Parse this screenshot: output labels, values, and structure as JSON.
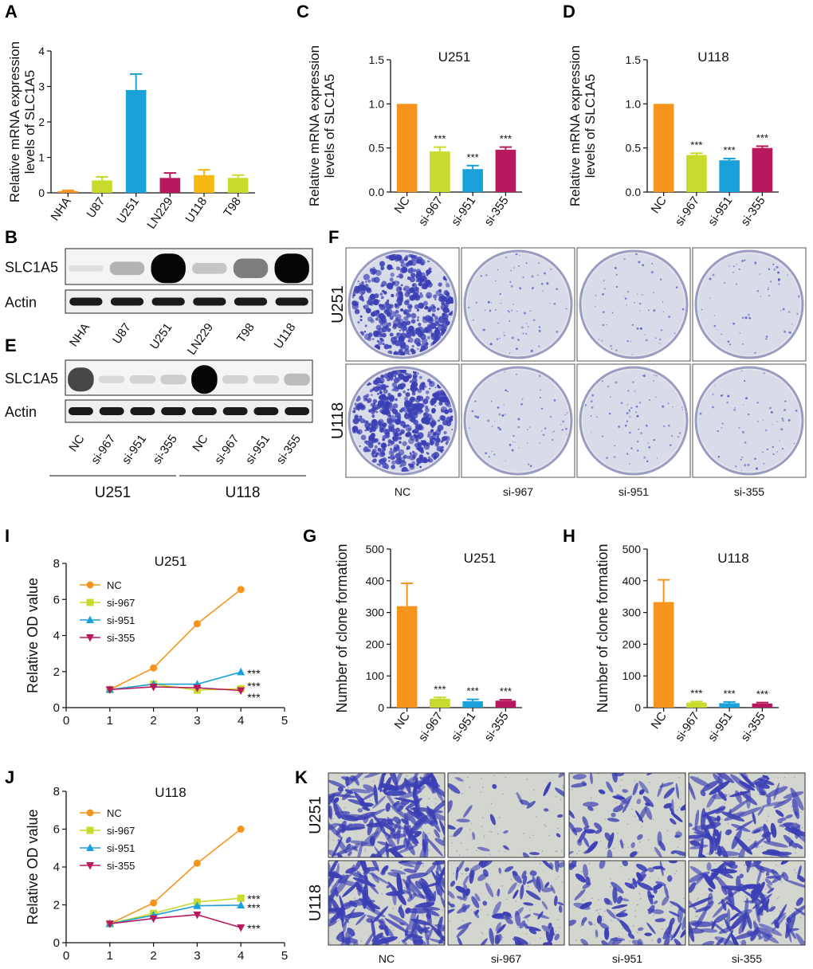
{
  "colors": {
    "NHA": "#f7941d",
    "U87": "#c8da2b",
    "U251": "#1ba1d9",
    "LN229": "#b8195e",
    "U118": "#f8b814",
    "T98": "#c8da2b",
    "NC": "#f7941d",
    "si967": "#c8da2b",
    "si951": "#1ba1d9",
    "si355": "#b8195e",
    "cv_purple": "#3b3fb4",
    "cv_pale": "#d8dbe8",
    "tw_bg": "#d3d5cf"
  },
  "panels": {
    "A": "A",
    "B": "B",
    "C": "C",
    "D": "D",
    "E": "E",
    "F": "F",
    "G": "G",
    "H": "H",
    "I": "I",
    "J": "J",
    "K": "K"
  },
  "blots": {
    "B": {
      "rows": [
        "SLC1A5",
        "Actin"
      ],
      "lanes": [
        "NHA",
        "U87",
        "U251",
        "LN229",
        "T98",
        "U118"
      ],
      "slc_intensity": [
        0.05,
        0.35,
        1.0,
        0.25,
        0.6,
        1.0
      ]
    },
    "E": {
      "rows": [
        "SLC1A5",
        "Actin"
      ],
      "lanes": [
        "NC",
        "si-967",
        "si-951",
        "si-355",
        "NC",
        "si-967",
        "si-951",
        "si-355"
      ],
      "groups": [
        "U251",
        "U118"
      ],
      "slc_intensity": [
        0.8,
        0.1,
        0.15,
        0.2,
        1.0,
        0.15,
        0.15,
        0.3
      ]
    }
  },
  "plates": {
    "F": {
      "rows": [
        "U251",
        "U118"
      ],
      "cols": [
        "NC",
        "si-967",
        "si-951",
        "si-355"
      ],
      "density": [
        [
          0.8,
          0.08,
          0.05,
          0.05
        ],
        [
          1.0,
          0.06,
          0.07,
          0.05
        ]
      ]
    },
    "K": {
      "rows": [
        "U251",
        "U118"
      ],
      "cols": [
        "NC",
        "si-967",
        "si-951",
        "si-355"
      ],
      "density": [
        [
          0.9,
          0.05,
          0.3,
          0.55
        ],
        [
          0.85,
          0.45,
          0.4,
          0.6
        ]
      ]
    }
  },
  "chart_data": [
    {
      "panel": "A",
      "type": "bar",
      "title": "",
      "ylabel": "Relative mRNA expression levels of SLC1A5",
      "ylim": [
        0,
        4
      ],
      "yticks": [
        "0",
        "1",
        "2",
        "3",
        "4"
      ],
      "categories": [
        "NHA",
        "U87",
        "U251",
        "LN229",
        "U118",
        "T98"
      ],
      "values": [
        0.05,
        0.35,
        2.9,
        0.42,
        0.5,
        0.42
      ],
      "errors": [
        0.02,
        0.1,
        0.45,
        0.14,
        0.15,
        0.08
      ],
      "annotations": [
        "",
        "",
        "",
        "",
        "",
        ""
      ]
    },
    {
      "panel": "C",
      "type": "bar",
      "title": "U251",
      "ylabel": "Relative mRNA expression levels of SLC1A5",
      "ylim": [
        0,
        1.5
      ],
      "yticks": [
        "0.0",
        "0.5",
        "1.0",
        "1.5"
      ],
      "categories": [
        "NC",
        "si-967",
        "si-951",
        "si-355"
      ],
      "values": [
        1.0,
        0.46,
        0.26,
        0.48
      ],
      "errors": [
        0,
        0.05,
        0.04,
        0.03
      ],
      "annotations": [
        "",
        "***",
        "***",
        "***"
      ]
    },
    {
      "panel": "D",
      "type": "bar",
      "title": "U118",
      "ylabel": "Relative mRNA expression levels of SLC1A5",
      "ylim": [
        0,
        1.5
      ],
      "yticks": [
        "0.0",
        "0.5",
        "1.0",
        "1.5"
      ],
      "categories": [
        "NC",
        "si-967",
        "si-951",
        "si-355"
      ],
      "values": [
        1.0,
        0.42,
        0.36,
        0.5
      ],
      "errors": [
        0,
        0.02,
        0.02,
        0.02
      ],
      "annotations": [
        "",
        "***",
        "***",
        "***"
      ]
    },
    {
      "panel": "G",
      "type": "bar",
      "title": "U251",
      "ylabel": "Number of clone formation",
      "ylim": [
        0,
        500
      ],
      "yticks": [
        "0",
        "100",
        "200",
        "300",
        "400",
        "500"
      ],
      "categories": [
        "NC",
        "si-967",
        "si-951",
        "si-355"
      ],
      "values": [
        320,
        28,
        20,
        22
      ],
      "errors": [
        72,
        4,
        6,
        3
      ],
      "annotations": [
        "",
        "***",
        "***",
        "***"
      ]
    },
    {
      "panel": "H",
      "type": "bar",
      "title": "U118",
      "ylabel": "Number of clone formation",
      "ylim": [
        0,
        500
      ],
      "yticks": [
        "0",
        "100",
        "200",
        "300",
        "400",
        "500"
      ],
      "categories": [
        "NC",
        "si-967",
        "si-951",
        "si-355"
      ],
      "values": [
        333,
        16,
        14,
        13
      ],
      "errors": [
        70,
        3,
        4,
        3
      ],
      "annotations": [
        "",
        "***",
        "***",
        "***"
      ]
    },
    {
      "panel": "I",
      "type": "line",
      "title": "U251",
      "ylabel": "Relative OD value",
      "xlim": [
        0,
        5
      ],
      "ylim": [
        0,
        8
      ],
      "xticks": [
        "0",
        "1",
        "2",
        "3",
        "4",
        "5"
      ],
      "yticks": [
        "0",
        "2",
        "4",
        "6",
        "8"
      ],
      "x": [
        1,
        2,
        3,
        4
      ],
      "series": [
        {
          "name": "NC",
          "values": [
            1.0,
            2.2,
            4.65,
            6.55
          ]
        },
        {
          "name": "si-967",
          "values": [
            1.0,
            1.3,
            0.97,
            1.05
          ]
        },
        {
          "name": "si-951",
          "values": [
            1.0,
            1.3,
            1.3,
            1.97
          ]
        },
        {
          "name": "si-355",
          "values": [
            1.0,
            1.15,
            1.1,
            0.95
          ]
        }
      ],
      "end_annotations": [
        "***",
        "***",
        "***"
      ]
    },
    {
      "panel": "J",
      "type": "line",
      "title": "U118",
      "ylabel": "Relative OD value",
      "xlim": [
        0,
        5
      ],
      "ylim": [
        0,
        8
      ],
      "xticks": [
        "0",
        "1",
        "2",
        "3",
        "4",
        "5"
      ],
      "yticks": [
        "0",
        "2",
        "4",
        "6",
        "8"
      ],
      "x": [
        1,
        2,
        3,
        4
      ],
      "series": [
        {
          "name": "NC",
          "values": [
            1.0,
            2.1,
            4.2,
            6.0
          ]
        },
        {
          "name": "si-967",
          "values": [
            1.0,
            1.55,
            2.15,
            2.35
          ]
        },
        {
          "name": "si-951",
          "values": [
            1.0,
            1.45,
            1.95,
            1.98
          ]
        },
        {
          "name": "si-355",
          "values": [
            1.0,
            1.28,
            1.48,
            0.8
          ]
        }
      ],
      "end_annotations": [
        "***",
        "***",
        "***"
      ]
    }
  ]
}
